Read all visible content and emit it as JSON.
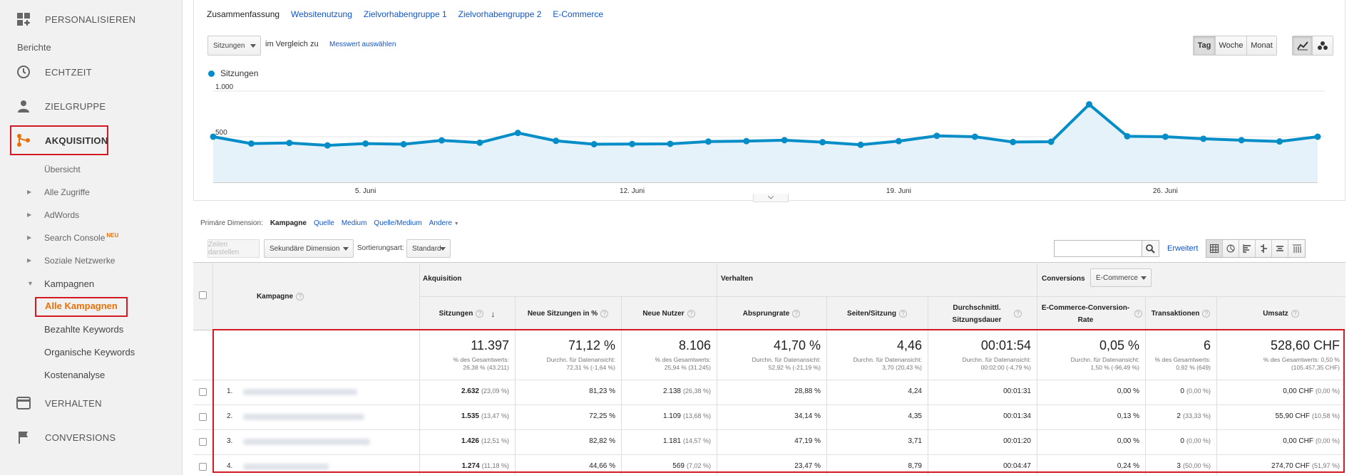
{
  "sidebar": {
    "personalize": "PERSONALISIEREN",
    "reports_heading": "Berichte",
    "realtime": "ECHTZEIT",
    "audience": "ZIELGRUPPE",
    "acquisition": "AKQUISITION",
    "acq_items": {
      "overview": "Übersicht",
      "all_traffic": "Alle Zugriffe",
      "adwords": "AdWords",
      "search_console": "Search Console",
      "neu_badge": "NEU",
      "social": "Soziale Netzwerke",
      "campaigns": "Kampagnen",
      "all_campaigns": "Alle Kampagnen",
      "paid_keywords": "Bezahlte Keywords",
      "organic_keywords": "Organische Keywords",
      "cost_analysis": "Kostenanalyse"
    },
    "behavior": "VERHALTEN",
    "conversions": "CONVERSIONS"
  },
  "tabs": [
    "Zusammenfassung",
    "Websitenutzung",
    "Zielvorhabengruppe 1",
    "Zielvorhabengruppe 2",
    "E-Commerce"
  ],
  "chart_controls": {
    "metric": "Sitzungen",
    "compare_text": "im Vergleich zu",
    "select_metric": "Messwert auswählen",
    "period": [
      "Tag",
      "Woche",
      "Monat"
    ],
    "active_period": "Tag"
  },
  "chart_data": {
    "type": "area",
    "series": [
      {
        "name": "Sitzungen",
        "color": "#058dc7",
        "values": [
          500,
          425,
          432,
          405,
          425,
          418,
          460,
          435,
          542,
          455,
          418,
          420,
          422,
          447,
          452,
          462,
          440,
          412,
          452,
          510,
          500,
          442,
          445,
          855,
          505,
          500,
          478,
          462,
          448,
          500
        ]
      }
    ],
    "x_tick_labels": [
      "5. Juni",
      "12. Juni",
      "19. Juni",
      "26. Juni"
    ],
    "y_tick_labels": [
      "1.000",
      "500"
    ],
    "ylim": [
      0,
      1000
    ],
    "grid": true
  },
  "dimensions": {
    "label": "Primäre Dimension:",
    "current": "Kampagne",
    "others": [
      "Quelle",
      "Medium",
      "Quelle/Medium",
      "Andere"
    ]
  },
  "controls": {
    "show_rows": "Zeilen darstellen",
    "secondary_dim": "Sekundäre Dimension",
    "sort_label": "Sortierungsart:",
    "sort_value": "Standard",
    "advanced": "Erweitert"
  },
  "table": {
    "groups": {
      "acquisition": "Akquisition",
      "behavior": "Verhalten",
      "conversions": "Conversions",
      "conv_select": "E-Commerce"
    },
    "col_campaign": "Kampagne",
    "columns": [
      "Sitzungen",
      "Neue Sitzungen in %",
      "Neue Nutzer",
      "Absprungrate",
      "Seiten/Sitzung",
      "Durchschnittl. Sitzungsdauer",
      "E-Commerce-Conversion-Rate",
      "Transaktionen",
      "Umsatz"
    ],
    "totals": [
      {
        "big": "11.397",
        "sub1": "% des Gesamtwerts:",
        "sub2": "26,38 % (43.211)"
      },
      {
        "big": "71,12 %",
        "sub1": "Durchn. für Datenansicht:",
        "sub2": "72,31 % (-1,64 %)"
      },
      {
        "big": "8.106",
        "sub1": "% des Gesamtwerts:",
        "sub2": "25,94 % (31.245)"
      },
      {
        "big": "41,70 %",
        "sub1": "Durchn. für Datenansicht:",
        "sub2": "52,92 % (-21,19 %)"
      },
      {
        "big": "4,46",
        "sub1": "Durchn. für Datenansicht:",
        "sub2": "3,70 (20,43 %)"
      },
      {
        "big": "00:01:54",
        "sub1": "Durchn. für Datenansicht:",
        "sub2": "00:02:00 (-4,79 %)"
      },
      {
        "big": "0,05 %",
        "sub1": "Durchn. für Datenansicht:",
        "sub2": "1,50 % (-96,49 %)"
      },
      {
        "big": "6",
        "sub1": "% des Gesamtwerts:",
        "sub2": "0,92 % (649)"
      },
      {
        "big": "528,60 CHF",
        "sub1": "% des Gesamtwerts: 0,50 %",
        "sub2": "(105.457,35 CHF)"
      }
    ],
    "rows": [
      {
        "n": "1.",
        "sessions": "2.632",
        "sessions_pct": "(23,09 %)",
        "new_pct": "81,23 %",
        "new_users": "2.138",
        "new_users_pct": "(26,38 %)",
        "bounce": "28,88 %",
        "pages": "4,24",
        "duration": "00:01:31",
        "conv": "0,00 %",
        "trans": "0",
        "trans_pct": "(0,00 %)",
        "rev": "0,00 CHF",
        "rev_pct": "(0,00 %)"
      },
      {
        "n": "2.",
        "sessions": "1.535",
        "sessions_pct": "(13,47 %)",
        "new_pct": "72,25 %",
        "new_users": "1.109",
        "new_users_pct": "(13,68 %)",
        "bounce": "34,14 %",
        "pages": "4,35",
        "duration": "00:01:34",
        "conv": "0,13 %",
        "trans": "2",
        "trans_pct": "(33,33 %)",
        "rev": "55,90 CHF",
        "rev_pct": "(10,58 %)"
      },
      {
        "n": "3.",
        "sessions": "1.426",
        "sessions_pct": "(12,51 %)",
        "new_pct": "82,82 %",
        "new_users": "1.181",
        "new_users_pct": "(14,57 %)",
        "bounce": "47,19 %",
        "pages": "3,71",
        "duration": "00:01:20",
        "conv": "0,00 %",
        "trans": "0",
        "trans_pct": "(0,00 %)",
        "rev": "0,00 CHF",
        "rev_pct": "(0,00 %)"
      },
      {
        "n": "4.",
        "sessions": "1.274",
        "sessions_pct": "(11,18 %)",
        "new_pct": "44,66 %",
        "new_users": "569",
        "new_users_pct": "(7,02 %)",
        "bounce": "23,47 %",
        "pages": "8,79",
        "duration": "00:04:47",
        "conv": "0,24 %",
        "trans": "3",
        "trans_pct": "(50,00 %)",
        "rev": "274,70 CHF",
        "rev_pct": "(51,97 %)"
      }
    ]
  }
}
